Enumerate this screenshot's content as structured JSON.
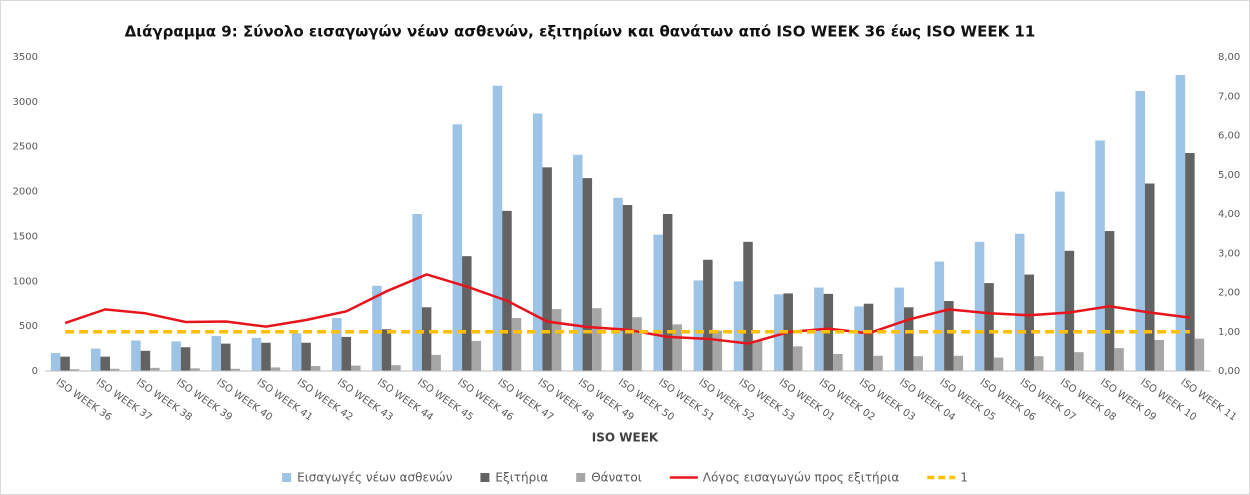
{
  "chart_data": {
    "type": "bar",
    "title": "Διάγραμμα 9: Σύνολο εισαγωγών νέων ασθενών, εξιτηρίων και θανάτων από ISO WEEK 36 έως ISO WEEK 11",
    "x_label": "ISO WEEK",
    "categories": [
      "ISO WEEK 36",
      "ISO WEEK 37",
      "ISO WEEK 38",
      "ISO WEEK 39",
      "ISO WEEK 40",
      "ISO WEEK 41",
      "ISO WEEK 42",
      "ISO WEEK 43",
      "ISO WEEK 44",
      "ISO WEEK 45",
      "ISO WEEK 46",
      "ISO WEEK 47",
      "ISO WEEK 48",
      "ISO WEEK 49",
      "ISO WEEK 50",
      "ISO WEEK 51",
      "ISO WEEK 52",
      "ISO WEEK 53",
      "ISO WEEK 01",
      "ISO WEEK 02",
      "ISO WEEK 03",
      "ISO WEEK 04",
      "ISO WEEK 05",
      "ISO WEEK 06",
      "ISO WEEK 07",
      "ISO WEEK 08",
      "ISO WEEK 09",
      "ISO WEEK 10",
      "ISO WEEK 11"
    ],
    "series": [
      {
        "name": "Εισαγωγές νέων ασθενών",
        "type": "bar",
        "color": "#9dc3e6",
        "values": [
          200,
          250,
          340,
          330,
          390,
          370,
          420,
          590,
          950,
          1750,
          2750,
          3180,
          2870,
          2410,
          1930,
          1520,
          1010,
          1000,
          855,
          930,
          720,
          930,
          1220,
          1440,
          1530,
          2000,
          2570,
          3120,
          3300
        ]
      },
      {
        "name": "Εξιτήρια",
        "type": "bar",
        "color": "#636363",
        "values": [
          160,
          160,
          225,
          265,
          305,
          315,
          315,
          380,
          465,
          710,
          1280,
          1785,
          2270,
          2150,
          1850,
          1750,
          1240,
          1440,
          865,
          860,
          750,
          710,
          780,
          980,
          1075,
          1340,
          1560,
          2090,
          2430
        ]
      },
      {
        "name": "Θάνατοι",
        "type": "bar",
        "color": "#a6a6a6",
        "values": [
          20,
          25,
          35,
          30,
          25,
          40,
          55,
          60,
          65,
          180,
          335,
          590,
          690,
          700,
          600,
          520,
          450,
          340,
          275,
          190,
          170,
          165,
          170,
          150,
          165,
          210,
          255,
          345,
          360
        ]
      },
      {
        "name": "Λόγος εισαγωγών προς εξιτήρια",
        "type": "line",
        "axis": "y2",
        "color": "#e8141c",
        "dashed": false,
        "values": [
          1.22,
          1.57,
          1.47,
          1.25,
          1.26,
          1.13,
          1.3,
          1.52,
          2.03,
          2.46,
          2.15,
          1.79,
          1.26,
          1.12,
          1.05,
          0.87,
          0.82,
          0.7,
          0.99,
          1.08,
          0.96,
          1.31,
          1.57,
          1.47,
          1.42,
          1.49,
          1.65,
          1.49,
          1.36
        ]
      },
      {
        "name": "1",
        "type": "line",
        "axis": "y2",
        "color": "#ffc000",
        "dashed": true,
        "values": [
          1,
          1,
          1,
          1,
          1,
          1,
          1,
          1,
          1,
          1,
          1,
          1,
          1,
          1,
          1,
          1,
          1,
          1,
          1,
          1,
          1,
          1,
          1,
          1,
          1,
          1,
          1,
          1,
          1
        ]
      }
    ],
    "ylim": [
      0,
      3500
    ],
    "yticks": [
      0,
      500,
      1000,
      1500,
      2000,
      2500,
      3000,
      3500
    ],
    "y2lim": [
      0,
      8
    ],
    "y2ticks": [
      {
        "value": 0,
        "label": "0,00"
      },
      {
        "value": 1,
        "label": "1,00"
      },
      {
        "value": 2,
        "label": "2,00"
      },
      {
        "value": 3,
        "label": "3,00"
      },
      {
        "value": 4,
        "label": "4,00"
      },
      {
        "value": 5,
        "label": "5,00"
      },
      {
        "value": 6,
        "label": "6,00"
      },
      {
        "value": 7,
        "label": "7,00"
      },
      {
        "value": 8,
        "label": "8,00"
      }
    ],
    "grid": false,
    "legend": "bottom"
  }
}
